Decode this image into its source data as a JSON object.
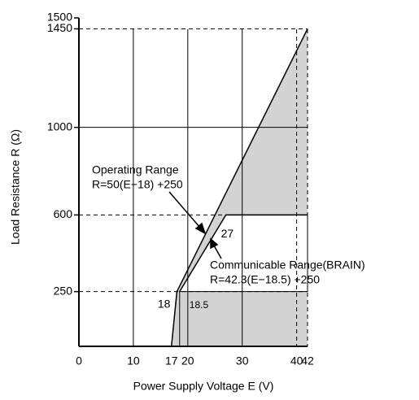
{
  "chart_data": {
    "type": "line",
    "xlabel": "Power Supply Voltage E (V)",
    "ylabel": "Load Resistance R (Ω)",
    "xlim": [
      0,
      42
    ],
    "ylim": [
      0,
      1500
    ],
    "xticks": [
      0,
      10,
      17,
      20,
      30,
      40,
      42
    ],
    "yticks": [
      250,
      600,
      1000,
      1450,
      1500
    ],
    "grid": true,
    "series": [
      {
        "name": "Operating Range",
        "color": "#000000",
        "fill": "#d3d3d3",
        "x": [
          17,
          18,
          42
        ],
        "values": [
          0,
          250,
          1450
        ]
      },
      {
        "name": "Communicable Range(BRAIN)",
        "color": "#000000",
        "fill": "#ffffff",
        "x": [
          18.5,
          27,
          42
        ],
        "values": [
          250,
          600,
          600
        ]
      }
    ],
    "annotations": [
      "R=50(E−18) +250",
      "R=42.3(E−18.5) +250"
    ]
  }
}
